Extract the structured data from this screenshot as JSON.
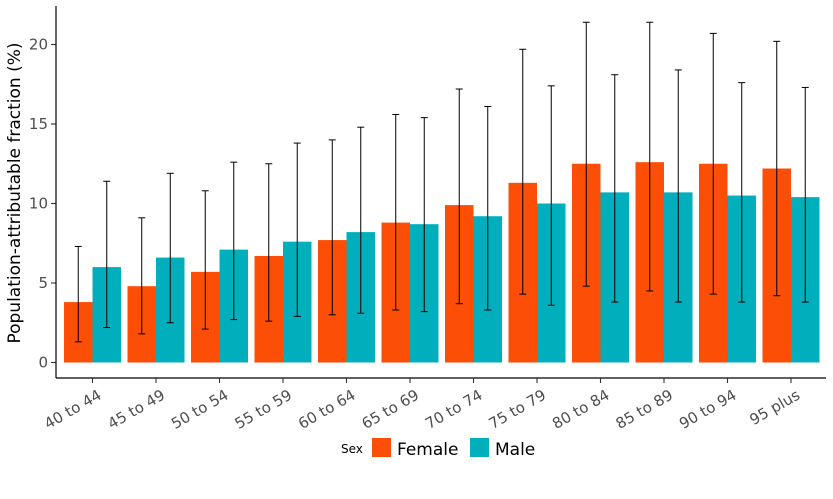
{
  "chart_data": {
    "type": "bar",
    "title": "",
    "xlabel": "",
    "ylabel": "Population-attributable fraction (%)",
    "ylim": [
      0,
      22.3
    ],
    "yticks": [
      0,
      5,
      10,
      15,
      20
    ],
    "grid": false,
    "legend": {
      "title": "Sex",
      "position": "bottom"
    },
    "categories": [
      "40 to 44",
      "45 to 49",
      "50 to 54",
      "55 to 59",
      "60 to 64",
      "65 to 69",
      "70 to 74",
      "75 to 79",
      "80 to 84",
      "85 to 89",
      "90 to 94",
      "95 plus"
    ],
    "series": [
      {
        "name": "Female",
        "color": "#FC4E07",
        "values": [
          3.8,
          4.8,
          5.7,
          6.7,
          7.7,
          8.8,
          9.9,
          11.3,
          12.5,
          12.6,
          12.5,
          12.2
        ],
        "lower": [
          1.3,
          1.8,
          2.1,
          2.6,
          3.0,
          3.3,
          3.7,
          4.3,
          4.8,
          4.5,
          4.3,
          4.2
        ],
        "upper": [
          7.3,
          9.1,
          10.8,
          12.5,
          14.0,
          15.6,
          17.2,
          19.7,
          21.4,
          21.4,
          20.7,
          20.2
        ]
      },
      {
        "name": "Male",
        "color": "#00AFBB",
        "values": [
          6.0,
          6.6,
          7.1,
          7.6,
          8.2,
          8.7,
          9.2,
          10.0,
          10.7,
          10.7,
          10.5,
          10.4
        ],
        "lower": [
          2.2,
          2.5,
          2.7,
          2.9,
          3.1,
          3.2,
          3.3,
          3.6,
          3.8,
          3.8,
          3.8,
          3.8
        ],
        "upper": [
          11.4,
          11.9,
          12.6,
          13.8,
          14.8,
          15.4,
          16.1,
          17.4,
          18.1,
          18.4,
          17.6,
          17.3
        ]
      }
    ]
  }
}
